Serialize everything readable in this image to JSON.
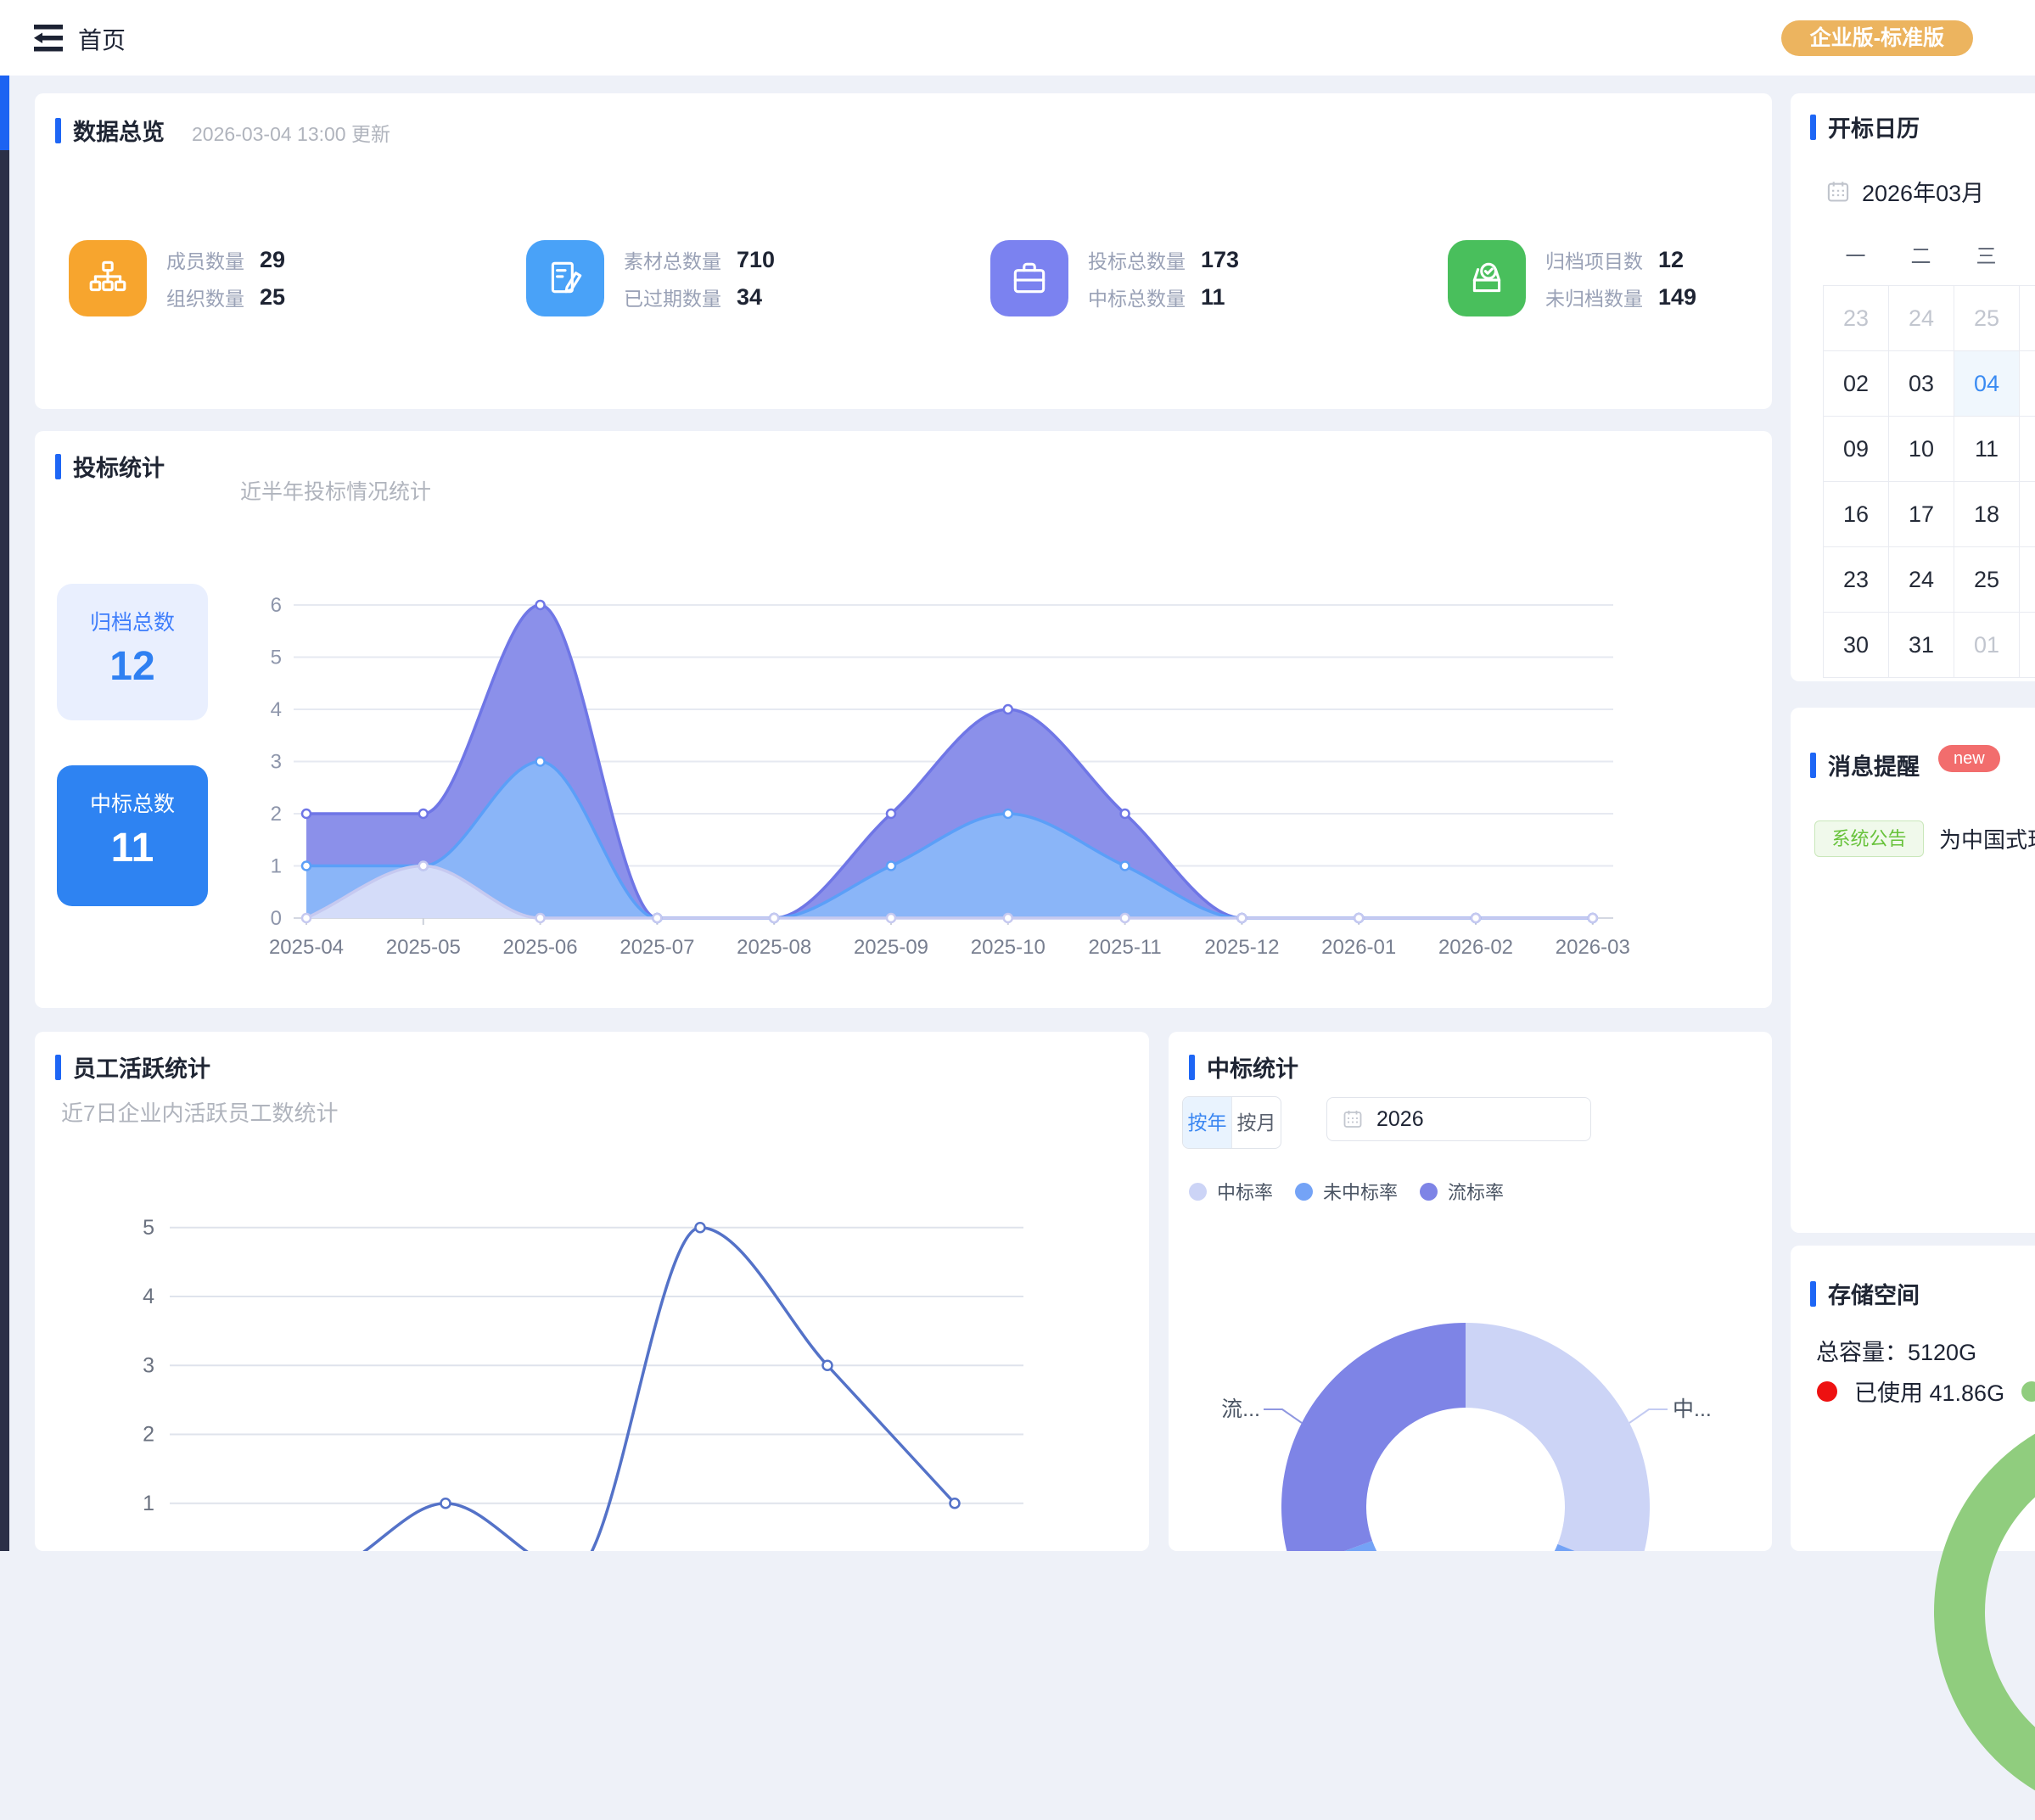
{
  "header": {
    "title": "首页",
    "badge": "企业版-标准版"
  },
  "overview": {
    "title": "数据总览",
    "updated": "2026-03-04 13:00 更新",
    "stats": [
      {
        "icon": "org-chart-icon",
        "color": "#f7a52e",
        "rows": [
          {
            "label": "成员数量",
            "value": "29"
          },
          {
            "label": "组织数量",
            "value": "25"
          }
        ]
      },
      {
        "icon": "material-doc-icon",
        "color": "#49a2f8",
        "rows": [
          {
            "label": "素材总数量",
            "value": "710"
          },
          {
            "label": "已过期数量",
            "value": "34"
          }
        ]
      },
      {
        "icon": "briefcase-icon",
        "color": "#7b82f0",
        "rows": [
          {
            "label": "投标总数量",
            "value": "173"
          },
          {
            "label": "中标总数量",
            "value": "11"
          }
        ]
      },
      {
        "icon": "archive-check-icon",
        "color": "#49bf5c",
        "rows": [
          {
            "label": "归档项目数",
            "value": "12"
          },
          {
            "label": "未归档数量",
            "value": "149"
          }
        ]
      }
    ]
  },
  "bidding": {
    "title": "投标统计",
    "subtitle": "近半年投标情况统计",
    "boxes": [
      {
        "label": "归档总数",
        "value": "12"
      },
      {
        "label": "中标总数",
        "value": "11"
      }
    ]
  },
  "activity": {
    "title": "员工活跃统计",
    "subtitle": "近7日企业内活跃员工数统计"
  },
  "winstats": {
    "title": "中标统计",
    "toggle": [
      "按年",
      "按月"
    ],
    "toggle_selected": "按年",
    "year": "2026",
    "legend": [
      {
        "label": "中标率",
        "color": "#ccd4f6"
      },
      {
        "label": "未中标率",
        "color": "#74a3f6"
      },
      {
        "label": "流标率",
        "color": "#7e84e6"
      }
    ],
    "donut_labels": {
      "left": "流...",
      "right": "中..."
    }
  },
  "calendar": {
    "title": "开标日历",
    "month": "2026年03月",
    "weekdays": [
      "一",
      "二",
      "三",
      ""
    ],
    "rows": [
      [
        {
          "d": "23",
          "s": "m"
        },
        {
          "d": "24",
          "s": "m"
        },
        {
          "d": "25",
          "s": "m"
        },
        {
          "d": "",
          "s": "n"
        }
      ],
      [
        {
          "d": "02",
          "s": "n"
        },
        {
          "d": "03",
          "s": "n"
        },
        {
          "d": "04",
          "s": "sel"
        },
        {
          "d": "",
          "s": "n"
        }
      ],
      [
        {
          "d": "09",
          "s": "n"
        },
        {
          "d": "10",
          "s": "n"
        },
        {
          "d": "11",
          "s": "n"
        },
        {
          "d": "",
          "s": "n"
        }
      ],
      [
        {
          "d": "16",
          "s": "n"
        },
        {
          "d": "17",
          "s": "n"
        },
        {
          "d": "18",
          "s": "n"
        },
        {
          "d": "",
          "s": "n"
        }
      ],
      [
        {
          "d": "23",
          "s": "n"
        },
        {
          "d": "24",
          "s": "n"
        },
        {
          "d": "25",
          "s": "n"
        },
        {
          "d": "",
          "s": "n"
        }
      ],
      [
        {
          "d": "30",
          "s": "n"
        },
        {
          "d": "31",
          "s": "n"
        },
        {
          "d": "01",
          "s": "m"
        },
        {
          "d": "",
          "s": "n"
        }
      ]
    ]
  },
  "messages": {
    "title": "消息提醒",
    "badge": "new",
    "tag": "系统公告",
    "text": "为中国式现"
  },
  "storage": {
    "title": "存储空间",
    "capacity_label": "总容量：5120G",
    "used_label": "已使用 41.86G",
    "used_color": "#ee1111",
    "free_color": "#90cd7e"
  },
  "chart_data": [
    {
      "name": "bidding_half_year",
      "type": "area",
      "title": "近半年投标情况统计",
      "categories": [
        "2025-04",
        "2025-05",
        "2025-06",
        "2025-07",
        "2025-08",
        "2025-09",
        "2025-10",
        "2025-11",
        "2025-12",
        "2026-01",
        "2026-02",
        "2026-03"
      ],
      "series": [
        {
          "name": "purple-series",
          "line": "#6f76e6",
          "fill": "#8b90ea",
          "fill_opacity": 1,
          "values": [
            2,
            2,
            6,
            0,
            0,
            2,
            4,
            2,
            0,
            0,
            0,
            0
          ]
        },
        {
          "name": "blue-series",
          "line": "#5b9ff8",
          "fill": "#8ab5f8",
          "fill_opacity": 1,
          "values": [
            1,
            1,
            3,
            0,
            0,
            1,
            2,
            1,
            0,
            0,
            0,
            0
          ]
        },
        {
          "name": "light-series",
          "line": "#c6c9f0",
          "fill": "#e0e3f9",
          "fill_opacity": 0.85,
          "values": [
            0,
            1,
            0,
            0,
            0,
            0,
            0,
            0,
            0,
            0,
            0,
            0
          ]
        }
      ],
      "ylim": [
        0,
        6
      ],
      "yticks": [
        0,
        1,
        2,
        3,
        4,
        5,
        6
      ],
      "grid": true,
      "legend_position": "none"
    },
    {
      "name": "employee_activity_7d",
      "type": "line",
      "title": "近7日企业内活跃员工数统计",
      "x_labels_visible": false,
      "categories": [
        "",
        "",
        "",
        "",
        "",
        "",
        ""
      ],
      "series": [
        {
          "name": "active-employees",
          "line": "#5472c8",
          "values": [
            0,
            0,
            1,
            0,
            5,
            3,
            1
          ]
        }
      ],
      "ylim": [
        0,
        5
      ],
      "yticks_visible": [
        1,
        2,
        3,
        4,
        5
      ],
      "grid": true
    },
    {
      "name": "win_rate_donut",
      "type": "pie",
      "segments": [
        {
          "label": "中标率",
          "color": "#ccd4f6",
          "start_deg": 0,
          "end_deg": 112,
          "pct_est": 31
        },
        {
          "label": "未中标率",
          "color": "#74a3f6",
          "start_deg": 112,
          "end_deg": 250,
          "pct_est": 38
        },
        {
          "label": "流标率",
          "color": "#7e84e6",
          "start_deg": 250,
          "end_deg": 360,
          "pct_est": 31
        }
      ],
      "inner_radius_ratio": 0.54,
      "callout_labels": [
        "流...",
        "中..."
      ]
    }
  ]
}
